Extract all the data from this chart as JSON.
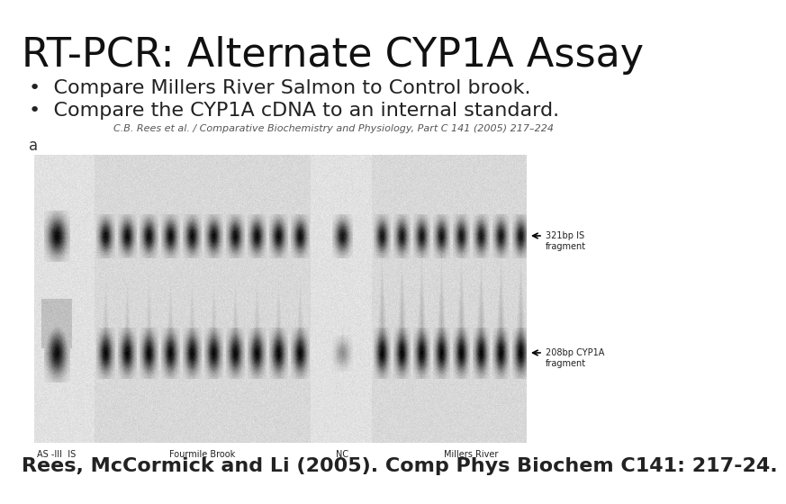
{
  "title": "RT-PCR: Alternate CYP1A Assay",
  "bullet1": "Compare Millers River Salmon to Control brook.",
  "bullet2": "Compare the CYP1A cDNA to an internal standard.",
  "citation_small": "C.B. Rees et al. / Comparative Biochemistry and Physiology, Part C 141 (2005) 217–224",
  "footer": "Rees, McCormick and Li (2005). Comp Phys Biochem C141: 217-24.",
  "label_a": "a",
  "gel_label1": "AS -III  IS",
  "gel_label2": "Fourmile Brook",
  "gel_label3": "NC",
  "gel_label4": "Millers River",
  "band_label1": "321bp IS\nfragment",
  "band_label2": "208bp CYP1A\nfragment",
  "bg_color": "#ffffff",
  "title_fontsize": 32,
  "bullet_fontsize": 16,
  "citation_fontsize": 8,
  "footer_fontsize": 16,
  "title_color": "#111111",
  "text_color": "#222222"
}
